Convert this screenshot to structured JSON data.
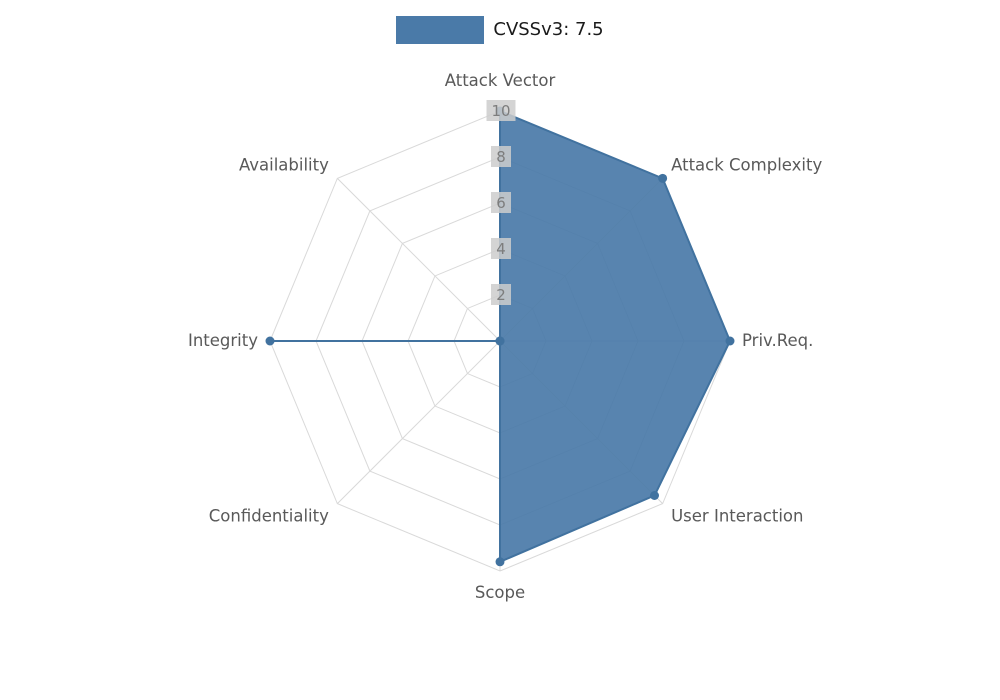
{
  "legend": {
    "label": "CVSSv3: 7.5"
  },
  "chart_data": {
    "type": "radar",
    "title": "CVSSv3: 7.5",
    "categories": [
      "Attack Vector",
      "Attack Complexity",
      "Priv.Req.",
      "User Interaction",
      "Scope",
      "Confidentiality",
      "Integrity",
      "Availability"
    ],
    "series": [
      {
        "name": "CVSSv3: 7.5",
        "values": [
          10,
          10,
          10,
          9.5,
          9.6,
          0,
          10,
          0
        ]
      }
    ],
    "scale": {
      "min": 0,
      "max": 10,
      "ticks": [
        2,
        4,
        6,
        8,
        10
      ]
    },
    "grid": "polygon-web",
    "legend_position": "top",
    "colors": {
      "series_fill": "#4a7aa8",
      "series_stroke": "#41729f",
      "point": "#41729f",
      "grid_line": "#d9d9d9",
      "axis_label": "#595959",
      "tick_text": "#7d7d7d",
      "tick_backdrop": "#cccccc",
      "legend_text": "#1a1a1a",
      "background": "#ffffff"
    }
  }
}
